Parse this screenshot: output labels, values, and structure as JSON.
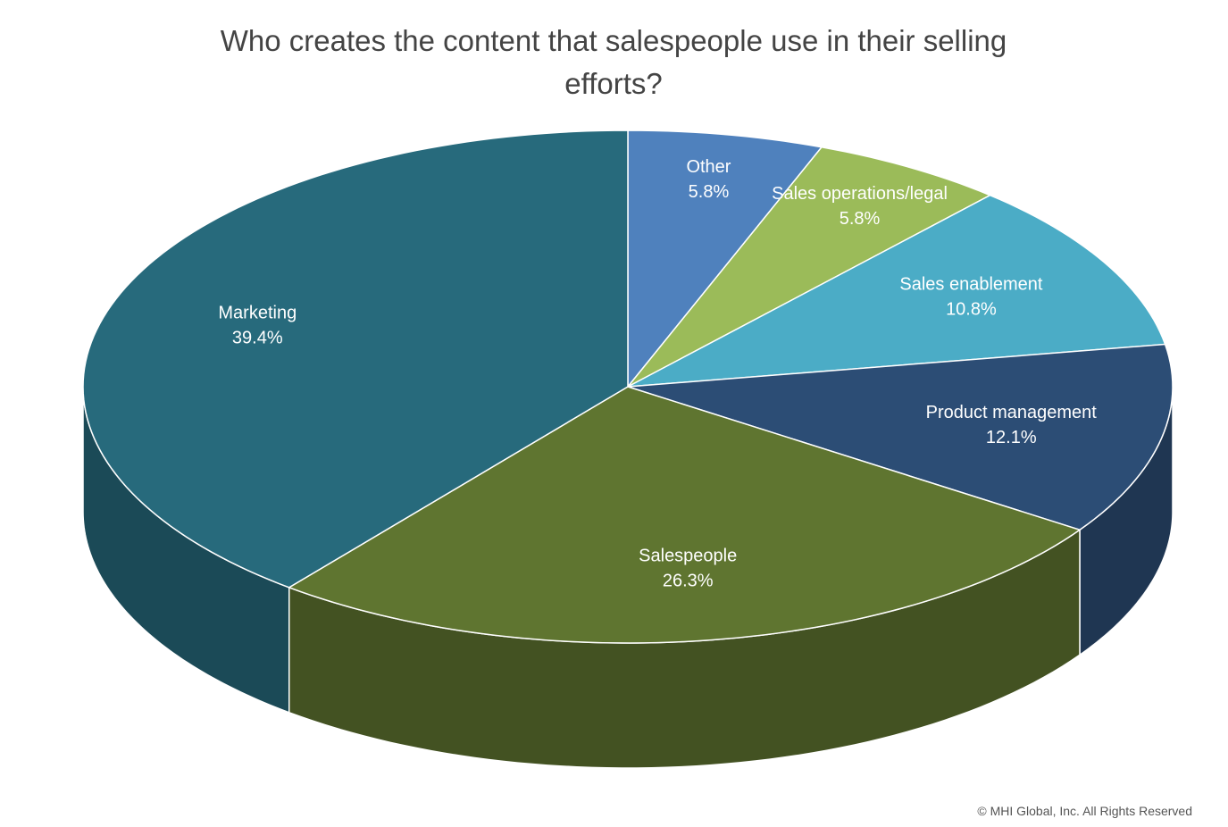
{
  "chart_data": {
    "type": "pie3d",
    "title": "Who creates the content that salespeople use in their selling efforts?",
    "categories": [
      "Other",
      "Sales operations/legal",
      "Sales enablement",
      "Product management",
      "Salespeople",
      "Marketing"
    ],
    "values": [
      5.8,
      5.8,
      10.8,
      12.1,
      26.3,
      39.4
    ],
    "value_labels": [
      "5.8%",
      "5.8%",
      "10.8%",
      "12.1%",
      "26.3%",
      "39.4%"
    ],
    "colors": [
      "#4f81bd",
      "#9bbb59",
      "#4bacc6",
      "#2c4d75",
      "#5f7530",
      "#276a7c"
    ],
    "footer": "© MHI Global, Inc. All Rights Reserved"
  }
}
